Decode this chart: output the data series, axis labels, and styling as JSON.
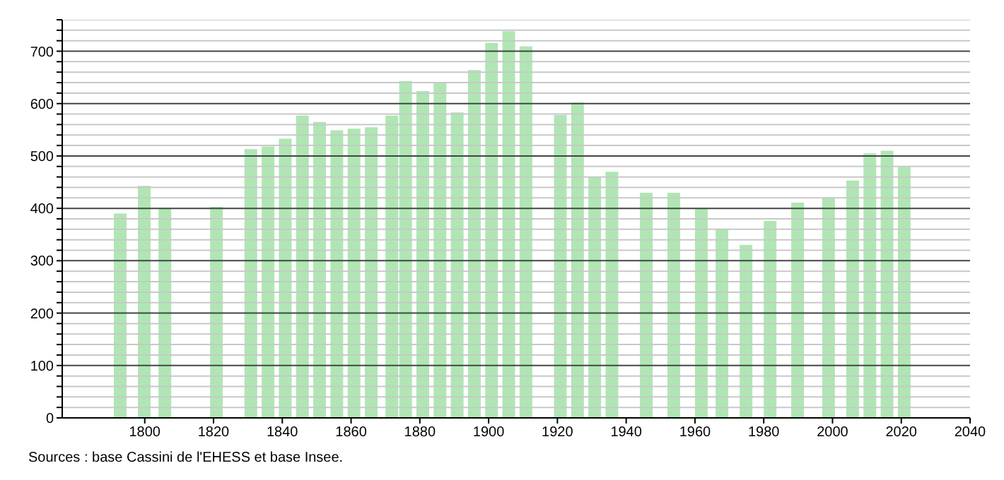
{
  "chart_data": {
    "type": "bar",
    "x": [
      1793,
      1800,
      1806,
      1821,
      1831,
      1836,
      1841,
      1846,
      1851,
      1856,
      1861,
      1866,
      1872,
      1876,
      1881,
      1886,
      1891,
      1896,
      1901,
      1906,
      1911,
      1921,
      1926,
      1931,
      1936,
      1946,
      1954,
      1962,
      1968,
      1975,
      1982,
      1990,
      1999,
      2006,
      2011,
      2016,
      2021
    ],
    "values": [
      390,
      443,
      400,
      403,
      513,
      518,
      533,
      577,
      565,
      549,
      552,
      555,
      577,
      643,
      624,
      641,
      583,
      664,
      716,
      738,
      709,
      578,
      602,
      460,
      470,
      430,
      430,
      400,
      361,
      330,
      376,
      411,
      420,
      453,
      505,
      510,
      479
    ],
    "color": "#b0e6b4",
    "xlim": [
      1776,
      2040
    ],
    "xticks": [
      1800,
      1820,
      1840,
      1860,
      1880,
      1900,
      1920,
      1940,
      1960,
      1980,
      2000,
      2020,
      2040
    ],
    "ylim": [
      0,
      760
    ],
    "yticks": [
      0,
      {
        "value": 20,
        "label": null
      },
      {
        "value": 40,
        "label": null
      },
      {
        "value": 60,
        "label": null
      },
      {
        "value": 80,
        "label": null
      },
      100,
      {
        "value": 120,
        "label": null
      },
      {
        "value": 140,
        "label": null
      },
      {
        "value": 160,
        "label": null
      },
      {
        "value": 180,
        "label": null
      },
      200,
      {
        "value": 220,
        "label": null
      },
      {
        "value": 240,
        "label": null
      },
      {
        "value": 260,
        "label": null
      },
      {
        "value": 280,
        "label": null
      },
      300,
      {
        "value": 320,
        "label": null
      },
      {
        "value": 340,
        "label": null
      },
      {
        "value": 360,
        "label": null
      },
      {
        "value": 380,
        "label": null
      },
      400,
      {
        "value": 420,
        "label": null
      },
      {
        "value": 440,
        "label": null
      },
      {
        "value": 460,
        "label": null
      },
      {
        "value": 480,
        "label": null
      },
      500,
      {
        "value": 520,
        "label": null
      },
      {
        "value": 540,
        "label": null
      },
      {
        "value": 560,
        "label": null
      },
      {
        "value": 580,
        "label": null
      },
      600,
      {
        "value": 620,
        "label": null
      },
      {
        "value": 640,
        "label": null
      },
      {
        "value": 660,
        "label": null
      },
      {
        "value": 680,
        "label": null
      },
      700,
      {
        "value": 720,
        "label": null
      },
      {
        "value": 740,
        "label": null
      },
      {
        "value": 760,
        "label": null
      }
    ],
    "grid": "y",
    "annotations": [
      "Sources : base Cassini de l'EHESS et base Insee."
    ]
  }
}
